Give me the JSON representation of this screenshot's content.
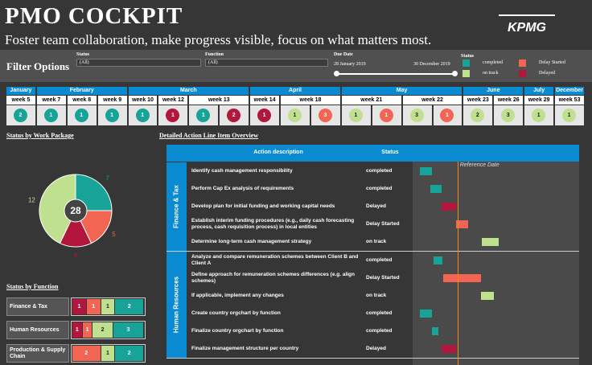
{
  "header": {
    "title": "PMO COCKPIT",
    "subtitle": "Foster team collaboration, make progress visible, focus on what matters most.",
    "logo": "KPMG"
  },
  "filters": {
    "title": "Filter Options",
    "status": {
      "label": "Status",
      "value": "(All)"
    },
    "function": {
      "label": "Function",
      "value": "(All)"
    },
    "due_date": {
      "label": "Due Date",
      "start": "28 January 2019",
      "end": "30 December 2019"
    },
    "legend": {
      "title": "Status",
      "items": [
        {
          "name": "completed",
          "color": "#17a398"
        },
        {
          "name": "Delay Started",
          "color": "#f26552"
        },
        {
          "name": "on track",
          "color": "#bfe08f"
        },
        {
          "name": "Delayed",
          "color": "#b3163d"
        }
      ]
    }
  },
  "timeline": {
    "months": [
      {
        "name": "January",
        "weeks": [
          {
            "label": "week 5",
            "items": [
              {
                "count": 2,
                "color": "#17a398"
              }
            ]
          }
        ]
      },
      {
        "name": "February",
        "weeks": [
          {
            "label": "week 7",
            "items": [
              {
                "count": 1,
                "color": "#17a398"
              }
            ]
          },
          {
            "label": "week 8",
            "items": [
              {
                "count": 1,
                "color": "#17a398"
              }
            ]
          },
          {
            "label": "week 9",
            "items": [
              {
                "count": 1,
                "color": "#17a398"
              }
            ]
          }
        ]
      },
      {
        "name": "March",
        "weeks": [
          {
            "label": "week 10",
            "items": [
              {
                "count": 1,
                "color": "#17a398"
              }
            ]
          },
          {
            "label": "week 12",
            "items": [
              {
                "count": 1,
                "color": "#b3163d"
              }
            ]
          },
          {
            "label": "week 13",
            "items": [
              {
                "count": 1,
                "color": "#17a398"
              },
              {
                "count": 2,
                "color": "#b3163d"
              }
            ]
          }
        ]
      },
      {
        "name": "April",
        "weeks": [
          {
            "label": "week 14",
            "items": [
              {
                "count": 1,
                "color": "#b3163d"
              }
            ]
          },
          {
            "label": "week 18",
            "items": [
              {
                "count": 1,
                "color": "#bfe08f"
              },
              {
                "count": 3,
                "color": "#f26552"
              }
            ]
          }
        ]
      },
      {
        "name": "May",
        "weeks": [
          {
            "label": "week 21",
            "items": [
              {
                "count": 1,
                "color": "#bfe08f"
              },
              {
                "count": 1,
                "color": "#f26552"
              }
            ]
          },
          {
            "label": "week 22",
            "items": [
              {
                "count": 3,
                "color": "#bfe08f"
              },
              {
                "count": 1,
                "color": "#f26552"
              }
            ]
          }
        ]
      },
      {
        "name": "June",
        "weeks": [
          {
            "label": "week 23",
            "items": [
              {
                "count": 2,
                "color": "#bfe08f"
              }
            ]
          },
          {
            "label": "week 26",
            "items": [
              {
                "count": 3,
                "color": "#bfe08f"
              }
            ]
          }
        ]
      },
      {
        "name": "July",
        "weeks": [
          {
            "label": "week 29",
            "items": [
              {
                "count": 1,
                "color": "#bfe08f"
              }
            ]
          }
        ]
      },
      {
        "name": "December",
        "weeks": [
          {
            "label": "week 53",
            "items": [
              {
                "count": 1,
                "color": "#bfe08f"
              }
            ]
          }
        ]
      }
    ]
  },
  "work_package": {
    "title": "Status by Work Package",
    "type": "pie",
    "total": 28,
    "values": [
      7,
      5,
      4,
      12
    ],
    "colors": [
      "#17a398",
      "#f26552",
      "#b3163d",
      "#bfe08f"
    ]
  },
  "by_function": {
    "title": "Status by Function",
    "rows": [
      {
        "name": "Finance & Tax",
        "segments": [
          {
            "value": 1,
            "color": "#b3163d"
          },
          {
            "value": 1,
            "color": "#f26552"
          },
          {
            "value": 1,
            "color": "#bfe08f"
          },
          {
            "value": 2,
            "color": "#17a398"
          }
        ]
      },
      {
        "name": "Human Resources",
        "segments": [
          {
            "value": 1,
            "color": "#b3163d"
          },
          {
            "value": 1,
            "color": "#f26552"
          },
          {
            "value": 2,
            "color": "#bfe08f"
          },
          {
            "value": 3,
            "color": "#17a398"
          }
        ]
      },
      {
        "name": "Production & Supply Chain",
        "segments": [
          {
            "value": 2,
            "color": "#f26552"
          },
          {
            "value": 1,
            "color": "#bfe08f"
          },
          {
            "value": 2,
            "color": "#17a398"
          }
        ]
      }
    ]
  },
  "detail": {
    "title": "Detailed Action Line Item Overview",
    "columns": [
      "Action description",
      "Status"
    ],
    "xlim": [
      1,
      53
    ],
    "reference": {
      "label": "Reference Date",
      "value": 15
    },
    "groups": [
      {
        "name": "Finance & Tax",
        "rows": [
          {
            "action": "Identify cash management responsibility",
            "status": "completed",
            "start": 3.3,
            "end": 7,
            "color": "#17a398"
          },
          {
            "action": "Perform Cap Ex analysis of requirements",
            "status": "completed",
            "start": 6.5,
            "end": 10,
            "color": "#17a398"
          },
          {
            "action": "Develop plan for initial funding and working capital needs",
            "status": "Delayed",
            "start": 10,
            "end": 14.5,
            "color": "#b3163d"
          },
          {
            "action": "Establish interim funding procedures (e.g., daily cash forecasting process, cash requisition process) in local entities",
            "status": "Delay Started",
            "start": 14.5,
            "end": 18.3,
            "color": "#f26552"
          },
          {
            "action": "Determine long-term cash management strategy",
            "status": "on track",
            "start": 22.5,
            "end": 28,
            "color": "#bfe08f"
          }
        ]
      },
      {
        "name": "Human Resources",
        "rows": [
          {
            "action": "Analyze and compare remuneration schemes between Client B and Client A",
            "status": "completed",
            "start": 7.5,
            "end": 10.3,
            "color": "#17a398"
          },
          {
            "action": "Define approach for remuneration schemes differences (e.g. align schemes)",
            "status": "Delay Started",
            "start": 10.5,
            "end": 22.3,
            "color": "#f26552"
          },
          {
            "action": "If applicable, implement any changes",
            "status": "on track",
            "start": 22.3,
            "end": 26.3,
            "color": "#bfe08f"
          },
          {
            "action": "Create country orgchart by function",
            "status": "completed",
            "start": 3.3,
            "end": 7,
            "color": "#17a398"
          },
          {
            "action": "Finalize country orgchart by function",
            "status": "completed",
            "start": 7,
            "end": 9,
            "color": "#17a398"
          },
          {
            "action": "Finalize management structure per country",
            "status": "Delayed",
            "start": 10,
            "end": 14.5,
            "color": "#b3163d"
          }
        ]
      }
    ]
  }
}
